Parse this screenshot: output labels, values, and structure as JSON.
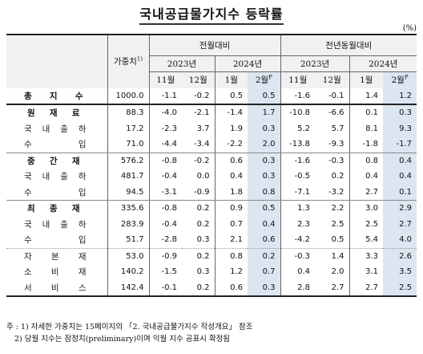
{
  "title": "국내공급물가지수 등락률",
  "unit": "(%)",
  "header": {
    "weight": "가중치",
    "weight_note": "1)",
    "mom": "전월대비",
    "yoy": "전년동월대비",
    "year_2023": "2023년",
    "year_2024": "2024년",
    "months": [
      "11월",
      "12월",
      "1월",
      "2월"
    ],
    "prelim_mark": "P"
  },
  "rows": [
    {
      "label": "총 지 수",
      "type": "main",
      "weight": "1000.0",
      "mom": [
        "-1.1",
        "-0.2",
        "0.5",
        "0.5"
      ],
      "yoy": [
        "-1.6",
        "-0.1",
        "1.4",
        "1.2"
      ]
    },
    {
      "label": "원 재 료",
      "type": "sub",
      "weight": "88.3",
      "mom": [
        "-4.0",
        "-2.1",
        "-1.4",
        "1.7"
      ],
      "yoy": [
        "-10.8",
        "-6.6",
        "0.1",
        "0.3"
      ]
    },
    {
      "label": "국 내 출 하",
      "type": "item",
      "weight": "17.2",
      "mom": [
        "-2.3",
        "3.7",
        "1.9",
        "0.3"
      ],
      "yoy": [
        "5.2",
        "5.7",
        "8.1",
        "9.3"
      ]
    },
    {
      "label": "수 입",
      "type": "item",
      "weight": "71.0",
      "mom": [
        "-4.4",
        "-3.4",
        "-2.2",
        "2.0"
      ],
      "yoy": [
        "-13.8",
        "-9.3",
        "-1.8",
        "-1.7"
      ]
    },
    {
      "label": "중 간 재",
      "type": "sub",
      "weight": "576.2",
      "mom": [
        "-0.8",
        "-0.2",
        "0.6",
        "0.3"
      ],
      "yoy": [
        "-1.6",
        "-0.3",
        "0.8",
        "0.4"
      ]
    },
    {
      "label": "국 내 출 하",
      "type": "item",
      "weight": "481.7",
      "mom": [
        "-0.4",
        "0.0",
        "0.4",
        "0.3"
      ],
      "yoy": [
        "-0.5",
        "0.2",
        "0.4",
        "0.4"
      ]
    },
    {
      "label": "수 입",
      "type": "item",
      "weight": "94.5",
      "mom": [
        "-3.1",
        "-0.9",
        "1.8",
        "0.8"
      ],
      "yoy": [
        "-7.1",
        "-3.2",
        "2.7",
        "0.1"
      ]
    },
    {
      "label": "최 종 재",
      "type": "sub",
      "weight": "335.6",
      "mom": [
        "-0.8",
        "0.2",
        "0.9",
        "0.5"
      ],
      "yoy": [
        "1.3",
        "2.2",
        "3.0",
        "2.9"
      ]
    },
    {
      "label": "국 내 출 하",
      "type": "item",
      "weight": "283.9",
      "mom": [
        "-0.4",
        "0.2",
        "0.7",
        "0.4"
      ],
      "yoy": [
        "2.3",
        "2.5",
        "2.5",
        "2.7"
      ]
    },
    {
      "label": "수 입",
      "type": "item",
      "weight": "51.7",
      "mom": [
        "-2.8",
        "0.3",
        "2.1",
        "0.6"
      ],
      "yoy": [
        "-4.2",
        "0.5",
        "5.4",
        "4.0"
      ]
    },
    {
      "label": "자 본 재",
      "type": "item",
      "weight": "53.0",
      "mom": [
        "-0.9",
        "0.2",
        "0.8",
        "0.2"
      ],
      "yoy": [
        "-0.3",
        "1.4",
        "3.3",
        "2.6"
      ]
    },
    {
      "label": "소 비 재",
      "type": "item",
      "weight": "140.2",
      "mom": [
        "-1.5",
        "0.3",
        "1.2",
        "0.7"
      ],
      "yoy": [
        "0.4",
        "2.0",
        "3.1",
        "3.5"
      ]
    },
    {
      "label": "서 비 스",
      "type": "item",
      "weight": "142.4",
      "mom": [
        "-0.1",
        "0.2",
        "0.6",
        "0.3"
      ],
      "yoy": [
        "2.8",
        "2.7",
        "2.7",
        "2.5"
      ]
    }
  ],
  "notes": [
    "주 : 1) 자세한 가중치는 15페이지의 「2. 국내공급물가지수 작성개요」 참조",
    "2) 당월 지수는 잠정치(preliminary)이며 익월 지수 공표시 확정됨"
  ],
  "colors": {
    "highlight": "#dbe6f1",
    "header_bg": "#f1f1f1"
  }
}
